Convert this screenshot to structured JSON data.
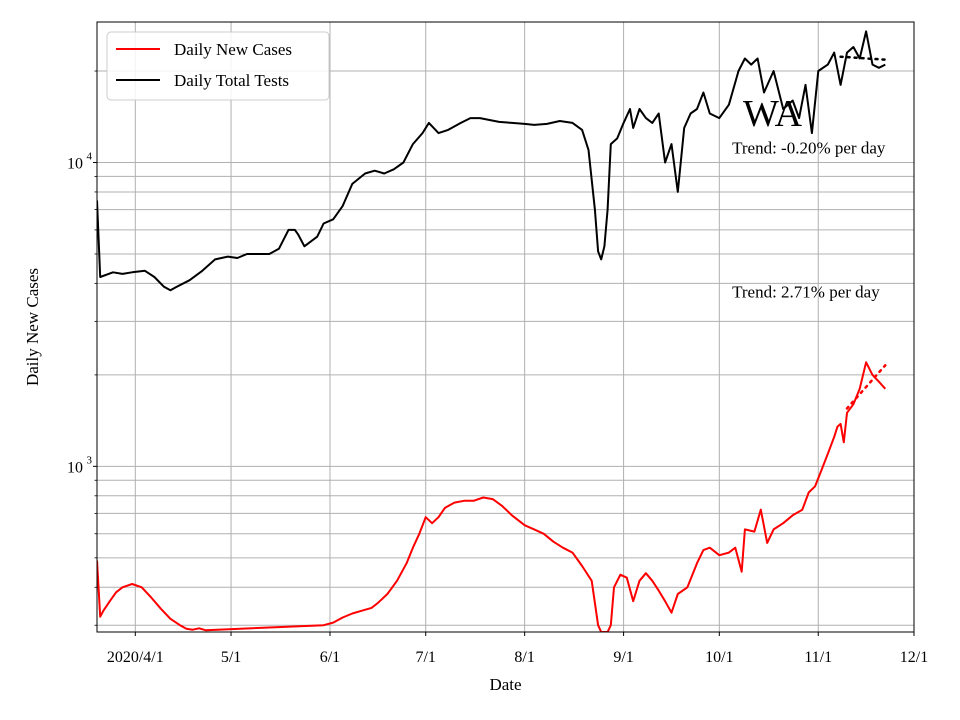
{
  "chart_data": {
    "type": "line",
    "title": "",
    "state_label": "WA",
    "xlabel": "Date",
    "ylabel": "Daily New Cases",
    "yscale": "log",
    "ylim": [
      285,
      29000
    ],
    "xlim": [
      "2020-03-20",
      "2020-12-01"
    ],
    "grid": true,
    "legend_position": "top-left",
    "x_ticks": [
      {
        "date": "2020-04-01",
        "label": "2020/4/1"
      },
      {
        "date": "2020-05-01",
        "label": "5/1"
      },
      {
        "date": "2020-06-01",
        "label": "6/1"
      },
      {
        "date": "2020-07-01",
        "label": "7/1"
      },
      {
        "date": "2020-08-01",
        "label": "8/1"
      },
      {
        "date": "2020-09-01",
        "label": "9/1"
      },
      {
        "date": "2020-10-01",
        "label": "10/1"
      },
      {
        "date": "2020-11-01",
        "label": "11/1"
      },
      {
        "date": "2020-12-01",
        "label": "12/1"
      }
    ],
    "y_ticks": [
      {
        "value": 1000,
        "base": "10",
        "exp": "3"
      },
      {
        "value": 10000,
        "base": "10",
        "exp": "4"
      }
    ],
    "y_minor_ticks": [
      300,
      400,
      500,
      600,
      700,
      800,
      900,
      2000,
      3000,
      4000,
      5000,
      6000,
      7000,
      8000,
      9000,
      20000
    ],
    "series": [
      {
        "name": "Daily New Cases",
        "color": "#ff0000",
        "style": "solid",
        "points": [
          [
            "2020-03-20",
            490
          ],
          [
            "2020-03-21",
            320
          ],
          [
            "2020-03-22",
            335
          ],
          [
            "2020-03-24",
            360
          ],
          [
            "2020-03-26",
            385
          ],
          [
            "2020-03-28",
            400
          ],
          [
            "2020-03-31",
            410
          ],
          [
            "2020-04-03",
            400
          ],
          [
            "2020-04-06",
            370
          ],
          [
            "2020-04-09",
            340
          ],
          [
            "2020-04-12",
            315
          ],
          [
            "2020-04-15",
            300
          ],
          [
            "2020-04-17",
            292
          ],
          [
            "2020-04-19",
            290
          ],
          [
            "2020-04-21",
            293
          ],
          [
            "2020-04-23",
            289
          ],
          [
            "2020-05-30",
            300
          ],
          [
            "2020-06-02",
            306
          ],
          [
            "2020-06-05",
            318
          ],
          [
            "2020-06-08",
            328
          ],
          [
            "2020-06-11",
            335
          ],
          [
            "2020-06-14",
            342
          ],
          [
            "2020-06-16",
            355
          ],
          [
            "2020-06-19",
            380
          ],
          [
            "2020-06-22",
            420
          ],
          [
            "2020-06-25",
            480
          ],
          [
            "2020-06-27",
            540
          ],
          [
            "2020-06-29",
            600
          ],
          [
            "2020-07-01",
            680
          ],
          [
            "2020-07-03",
            650
          ],
          [
            "2020-07-05",
            680
          ],
          [
            "2020-07-07",
            730
          ],
          [
            "2020-07-10",
            760
          ],
          [
            "2020-07-13",
            770
          ],
          [
            "2020-07-16",
            770
          ],
          [
            "2020-07-19",
            790
          ],
          [
            "2020-07-22",
            780
          ],
          [
            "2020-07-25",
            740
          ],
          [
            "2020-07-28",
            690
          ],
          [
            "2020-08-01",
            640
          ],
          [
            "2020-08-04",
            620
          ],
          [
            "2020-08-07",
            600
          ],
          [
            "2020-08-10",
            565
          ],
          [
            "2020-08-13",
            540
          ],
          [
            "2020-08-16",
            520
          ],
          [
            "2020-08-19",
            470
          ],
          [
            "2020-08-22",
            420
          ],
          [
            "2020-08-24",
            300
          ],
          [
            "2020-08-25",
            285
          ],
          [
            "2020-08-26",
            285
          ],
          [
            "2020-08-27",
            285
          ],
          [
            "2020-08-28",
            300
          ],
          [
            "2020-08-29",
            400
          ],
          [
            "2020-08-31",
            440
          ],
          [
            "2020-09-02",
            430
          ],
          [
            "2020-09-04",
            360
          ],
          [
            "2020-09-06",
            420
          ],
          [
            "2020-09-08",
            445
          ],
          [
            "2020-09-10",
            420
          ],
          [
            "2020-09-12",
            390
          ],
          [
            "2020-09-14",
            360
          ],
          [
            "2020-09-16",
            330
          ],
          [
            "2020-09-18",
            380
          ],
          [
            "2020-09-21",
            400
          ],
          [
            "2020-09-24",
            480
          ],
          [
            "2020-09-26",
            530
          ],
          [
            "2020-09-28",
            540
          ],
          [
            "2020-10-01",
            510
          ],
          [
            "2020-10-04",
            520
          ],
          [
            "2020-10-06",
            540
          ],
          [
            "2020-10-08",
            450
          ],
          [
            "2020-10-09",
            620
          ],
          [
            "2020-10-12",
            610
          ],
          [
            "2020-10-14",
            720
          ],
          [
            "2020-10-16",
            560
          ],
          [
            "2020-10-18",
            620
          ],
          [
            "2020-10-21",
            650
          ],
          [
            "2020-10-24",
            690
          ],
          [
            "2020-10-27",
            720
          ],
          [
            "2020-10-29",
            820
          ],
          [
            "2020-10-31",
            860
          ],
          [
            "2020-11-02",
            970
          ],
          [
            "2020-11-04",
            1100
          ],
          [
            "2020-11-06",
            1250
          ],
          [
            "2020-11-07",
            1350
          ],
          [
            "2020-11-08",
            1380
          ],
          [
            "2020-11-09",
            1200
          ],
          [
            "2020-11-10",
            1500
          ],
          [
            "2020-11-12",
            1600
          ],
          [
            "2020-11-14",
            1800
          ],
          [
            "2020-11-16",
            2200
          ],
          [
            "2020-11-18",
            2000
          ],
          [
            "2020-11-20",
            1900
          ],
          [
            "2020-11-22",
            1800
          ]
        ]
      },
      {
        "name": "Daily Total Tests",
        "color": "#000000",
        "style": "solid",
        "points": [
          [
            "2020-03-20",
            7500
          ],
          [
            "2020-03-21",
            4200
          ],
          [
            "2020-03-25",
            4350
          ],
          [
            "2020-03-28",
            4300
          ],
          [
            "2020-03-31",
            4350
          ],
          [
            "2020-04-04",
            4400
          ],
          [
            "2020-04-07",
            4200
          ],
          [
            "2020-04-10",
            3900
          ],
          [
            "2020-04-12",
            3800
          ],
          [
            "2020-04-14",
            3900
          ],
          [
            "2020-04-18",
            4100
          ],
          [
            "2020-04-22",
            4400
          ],
          [
            "2020-04-26",
            4800
          ],
          [
            "2020-04-30",
            4900
          ],
          [
            "2020-05-03",
            4850
          ],
          [
            "2020-05-06",
            5000
          ],
          [
            "2020-05-09",
            5000
          ],
          [
            "2020-05-13",
            5000
          ],
          [
            "2020-05-16",
            5200
          ],
          [
            "2020-05-19",
            6000
          ],
          [
            "2020-05-21",
            6000
          ],
          [
            "2020-05-22",
            5800
          ],
          [
            "2020-05-24",
            5300
          ],
          [
            "2020-05-28",
            5700
          ],
          [
            "2020-05-30",
            6300
          ],
          [
            "2020-06-02",
            6500
          ],
          [
            "2020-06-05",
            7200
          ],
          [
            "2020-06-08",
            8500
          ],
          [
            "2020-06-12",
            9200
          ],
          [
            "2020-06-15",
            9400
          ],
          [
            "2020-06-18",
            9200
          ],
          [
            "2020-06-21",
            9500
          ],
          [
            "2020-06-24",
            10000
          ],
          [
            "2020-06-27",
            11500
          ],
          [
            "2020-06-30",
            12500
          ],
          [
            "2020-07-02",
            13500
          ],
          [
            "2020-07-05",
            12500
          ],
          [
            "2020-07-08",
            12800
          ],
          [
            "2020-07-12",
            13500
          ],
          [
            "2020-07-15",
            14000
          ],
          [
            "2020-07-18",
            14000
          ],
          [
            "2020-07-21",
            13800
          ],
          [
            "2020-07-24",
            13600
          ],
          [
            "2020-07-28",
            13500
          ],
          [
            "2020-08-01",
            13400
          ],
          [
            "2020-08-04",
            13300
          ],
          [
            "2020-08-08",
            13400
          ],
          [
            "2020-08-12",
            13700
          ],
          [
            "2020-08-16",
            13500
          ],
          [
            "2020-08-19",
            12800
          ],
          [
            "2020-08-21",
            11000
          ],
          [
            "2020-08-23",
            7000
          ],
          [
            "2020-08-24",
            5100
          ],
          [
            "2020-08-25",
            4800
          ],
          [
            "2020-08-26",
            5300
          ],
          [
            "2020-08-27",
            7000
          ],
          [
            "2020-08-28",
            11500
          ],
          [
            "2020-08-30",
            12000
          ],
          [
            "2020-09-01",
            13500
          ],
          [
            "2020-09-03",
            15000
          ],
          [
            "2020-09-04",
            13000
          ],
          [
            "2020-09-06",
            15000
          ],
          [
            "2020-09-08",
            14000
          ],
          [
            "2020-09-10",
            13500
          ],
          [
            "2020-09-12",
            14500
          ],
          [
            "2020-09-14",
            10000
          ],
          [
            "2020-09-16",
            11500
          ],
          [
            "2020-09-18",
            8000
          ],
          [
            "2020-09-20",
            13000
          ],
          [
            "2020-09-22",
            14500
          ],
          [
            "2020-09-24",
            15000
          ],
          [
            "2020-09-26",
            17000
          ],
          [
            "2020-09-28",
            14500
          ],
          [
            "2020-10-01",
            14000
          ],
          [
            "2020-10-04",
            15500
          ],
          [
            "2020-10-07",
            20000
          ],
          [
            "2020-10-09",
            22000
          ],
          [
            "2020-10-11",
            21000
          ],
          [
            "2020-10-13",
            22000
          ],
          [
            "2020-10-15",
            17000
          ],
          [
            "2020-10-18",
            20000
          ],
          [
            "2020-10-21",
            15000
          ],
          [
            "2020-10-24",
            16000
          ],
          [
            "2020-10-26",
            14000
          ],
          [
            "2020-10-28",
            18000
          ],
          [
            "2020-10-30",
            12500
          ],
          [
            "2020-11-01",
            20000
          ],
          [
            "2020-11-04",
            21000
          ],
          [
            "2020-11-06",
            23000
          ],
          [
            "2020-11-08",
            18000
          ],
          [
            "2020-11-10",
            23000
          ],
          [
            "2020-11-12",
            24000
          ],
          [
            "2020-11-14",
            22000
          ],
          [
            "2020-11-16",
            27000
          ],
          [
            "2020-11-18",
            21000
          ],
          [
            "2020-11-20",
            20500
          ],
          [
            "2020-11-22",
            21000
          ]
        ]
      }
    ],
    "trend_lines": [
      {
        "color": "#ff0000",
        "style": "dotted",
        "points": [
          [
            "2020-11-10",
            1550
          ],
          [
            "2020-11-22",
            2150
          ]
        ]
      },
      {
        "color": "#000000",
        "style": "dotted",
        "points": [
          [
            "2020-11-08",
            22300
          ],
          [
            "2020-11-22",
            21800
          ]
        ]
      }
    ],
    "annotations": [
      {
        "text": "Trend: -0.20% per day",
        "date": "2020-10-05",
        "value": 10700
      },
      {
        "text": "Trend: 2.71% per day",
        "date": "2020-10-05",
        "value": 3600
      }
    ]
  }
}
